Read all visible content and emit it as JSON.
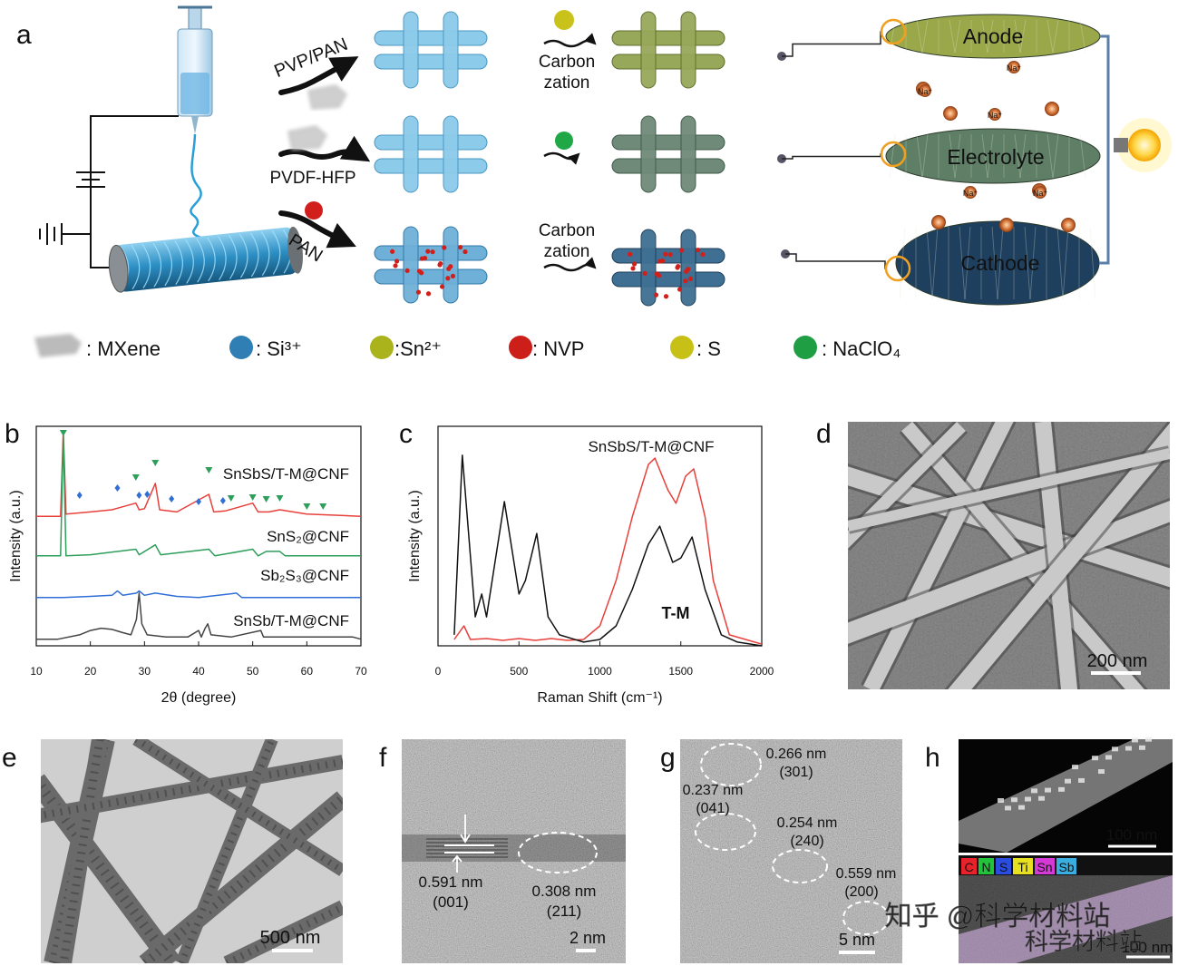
{
  "panel_a": {
    "label": "a",
    "pvp_pan": "PVP/PAN",
    "pvdf_hfp": "PVDF-HFP",
    "pan": "PAN",
    "carbonization_top": [
      "Carbon",
      "zation"
    ],
    "carbonization_bottom": [
      "Carbon",
      "zation"
    ],
    "electrodes": [
      "Anode",
      "Electrolyte",
      "Cathode"
    ],
    "ions": [
      "Na⁺",
      "Na⁺",
      "Na⁺",
      "Na⁺",
      "Na⁺"
    ],
    "legend": [
      ": MXene",
      ": Si³⁺",
      ":Sn²⁺",
      ": NVP",
      ": S",
      ": NaClO₄"
    ]
  },
  "chart_data": [
    {
      "type": "line",
      "label": "b",
      "x_label": "2θ (degree)",
      "y_label": "Intensity (a.u.)",
      "xlim": [
        10,
        70
      ],
      "xticks": [
        10,
        20,
        30,
        40,
        50,
        60,
        70
      ],
      "ylim": [
        0,
        100
      ],
      "series": [
        {
          "name": "SnSbS/T-M@CNF",
          "color": "#e8413c",
          "x": [
            10,
            14.5,
            15,
            15.5,
            20,
            24,
            28.4,
            29,
            30,
            32,
            32.8,
            36,
            41.9,
            42.8,
            45,
            50,
            51,
            53,
            55,
            60,
            70
          ],
          "values": [
            59,
            59,
            98,
            60,
            61,
            62,
            65,
            62,
            62.5,
            74,
            62,
            61,
            69,
            61,
            61.5,
            65,
            61,
            61,
            62,
            60,
            59
          ]
        },
        {
          "name": "SnS₂@CNF",
          "color": "#2e9e5b",
          "x": [
            10,
            14.5,
            15,
            15.5,
            20,
            28.4,
            29,
            32,
            33,
            41.9,
            43,
            50,
            51,
            52.5,
            55,
            56,
            70
          ],
          "values": [
            41,
            41,
            96,
            41,
            41.5,
            44,
            41.5,
            46,
            41.5,
            44,
            41,
            44,
            41,
            43,
            43,
            41,
            41
          ]
        },
        {
          "name": "Sb₂S₃@CNF",
          "color": "#2f6fd6",
          "x": [
            10,
            15,
            20,
            24,
            25,
            26,
            28.5,
            29,
            30,
            32,
            36,
            40,
            47,
            48,
            55,
            70
          ],
          "values": [
            22,
            22,
            22.5,
            23,
            25,
            23,
            24,
            25,
            23,
            24,
            22.5,
            22,
            24,
            22,
            22,
            22
          ]
        },
        {
          "name": "SnSb/T-M@CNF",
          "color": "#444444",
          "x": [
            10,
            14,
            18,
            20,
            22,
            24,
            26,
            27.5,
            28.5,
            29,
            29.5,
            30.5,
            34,
            38,
            40,
            40.5,
            41.2,
            41.7,
            42.3,
            46,
            51.5,
            52,
            60,
            68.5,
            70
          ],
          "values": [
            3,
            3,
            5,
            7,
            8,
            7.5,
            6,
            5,
            12,
            24,
            10,
            5,
            4,
            4,
            7,
            4,
            8,
            10,
            5,
            4,
            7,
            4,
            4,
            4,
            3
          ]
        }
      ]
    },
    {
      "type": "line",
      "label": "c",
      "x_label": "Raman Shift (cm⁻¹)",
      "y_label": "Intensity (a.u.)",
      "xlim": [
        0,
        2000
      ],
      "xticks": [
        0,
        500,
        1000,
        1500,
        2000
      ],
      "ylim": [
        0,
        100
      ],
      "series": [
        {
          "name": "SnSbS/T-M@CNF",
          "color": "#e8413c",
          "x": [
            100,
            160,
            200,
            300,
            400,
            500,
            600,
            700,
            800,
            900,
            1000,
            1100,
            1200,
            1300,
            1340,
            1420,
            1470,
            1530,
            1580,
            1650,
            1700,
            1800,
            2000
          ],
          "values": [
            2.9,
            9.1,
            2.9,
            3.3,
            2.5,
            3.3,
            2.5,
            3.3,
            2.5,
            2.9,
            9.1,
            29.8,
            58.7,
            82.6,
            85.5,
            71,
            64.9,
            77.3,
            80.6,
            58.7,
            29.8,
            5,
            0.8
          ]
        },
        {
          "name": "T-M",
          "color": "#111111",
          "x": [
            100,
            150,
            230,
            270,
            300,
            410,
            500,
            540,
            610,
            680,
            750,
            900,
            1000,
            1100,
            1200,
            1300,
            1370,
            1450,
            1500,
            1570,
            1650,
            1750,
            1850,
            2000
          ],
          "values": [
            5,
            86.8,
            13.2,
            23.6,
            13.2,
            65.7,
            23.6,
            29.8,
            51.2,
            13.2,
            5,
            1.7,
            2.9,
            9.1,
            25.6,
            46.3,
            54.5,
            38,
            40,
            49.6,
            25.6,
            5,
            1.7,
            0
          ]
        }
      ]
    }
  ],
  "panel_d": {
    "label": "d",
    "scale_bar": "200 nm"
  },
  "panel_e": {
    "label": "e",
    "scale_bar": "500 nm"
  },
  "panel_f": {
    "label": "f",
    "annotations": [
      "0.591 nm",
      "(001)",
      "0.308 nm",
      "(211)"
    ],
    "scale_bar": "2 nm"
  },
  "panel_g": {
    "label": "g",
    "annotations": [
      "0.266 nm",
      "(301)",
      "0.237 nm",
      "(041)",
      "0.254 nm",
      "(240)",
      "0.559 nm",
      "(200)"
    ],
    "scale_bar": "5 nm"
  },
  "panel_h": {
    "label": "h",
    "scale_bar_top": "100 nm",
    "elements": [
      "C",
      "N",
      "S",
      "Ti",
      "Sn",
      "Sb"
    ],
    "scale_bar_bottom": "100 nm"
  },
  "watermark": [
    "知乎 @科学材料站",
    "科学材料站"
  ]
}
